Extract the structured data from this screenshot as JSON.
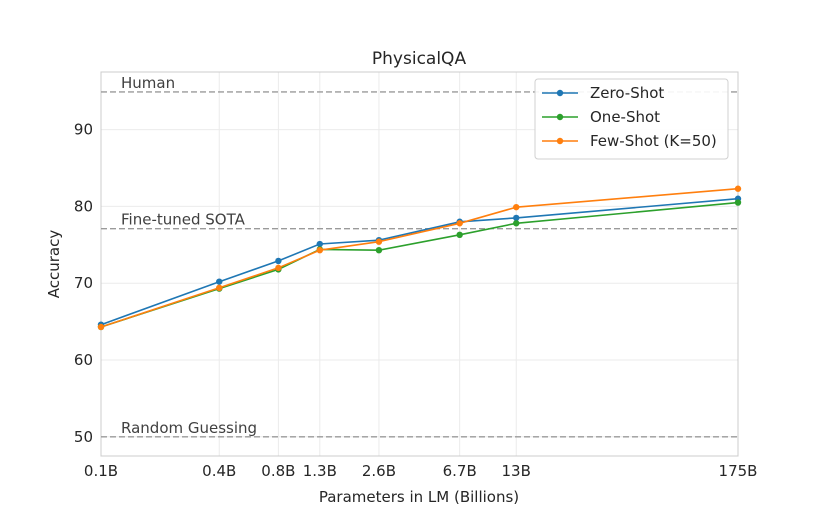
{
  "chart_data": {
    "type": "line",
    "title": "PhysicalQA",
    "xlabel": "Parameters in LM (Billions)",
    "ylabel": "Accuracy",
    "x_scale": "log",
    "x": [
      0.1,
      0.4,
      0.8,
      1.3,
      2.6,
      6.7,
      13,
      175
    ],
    "x_tick_labels": [
      "0.1B",
      "0.4B",
      "0.8B",
      "1.3B",
      "2.6B",
      "6.7B",
      "13B",
      "175B"
    ],
    "y_ticks": [
      50,
      60,
      70,
      80,
      90
    ],
    "ylim": [
      47.5,
      97.5
    ],
    "grid": true,
    "legend_position": "top-right",
    "series": [
      {
        "name": "Zero-Shot",
        "color": "#1f77b4",
        "values": [
          64.6,
          70.2,
          72.9,
          75.1,
          75.6,
          78.0,
          78.5,
          81.0
        ]
      },
      {
        "name": "One-Shot",
        "color": "#2ca02c",
        "values": [
          64.3,
          69.3,
          71.8,
          74.4,
          74.3,
          76.3,
          77.8,
          80.5
        ]
      },
      {
        "name": "Few-Shot (K=50)",
        "color": "#ff7f0e",
        "values": [
          64.3,
          69.4,
          72.0,
          74.3,
          75.4,
          77.8,
          79.9,
          82.3
        ]
      }
    ],
    "reference_lines": [
      {
        "label": "Human",
        "value": 94.9
      },
      {
        "label": "Fine-tuned SOTA",
        "value": 77.1
      },
      {
        "label": "Random Guessing",
        "value": 50
      }
    ]
  }
}
